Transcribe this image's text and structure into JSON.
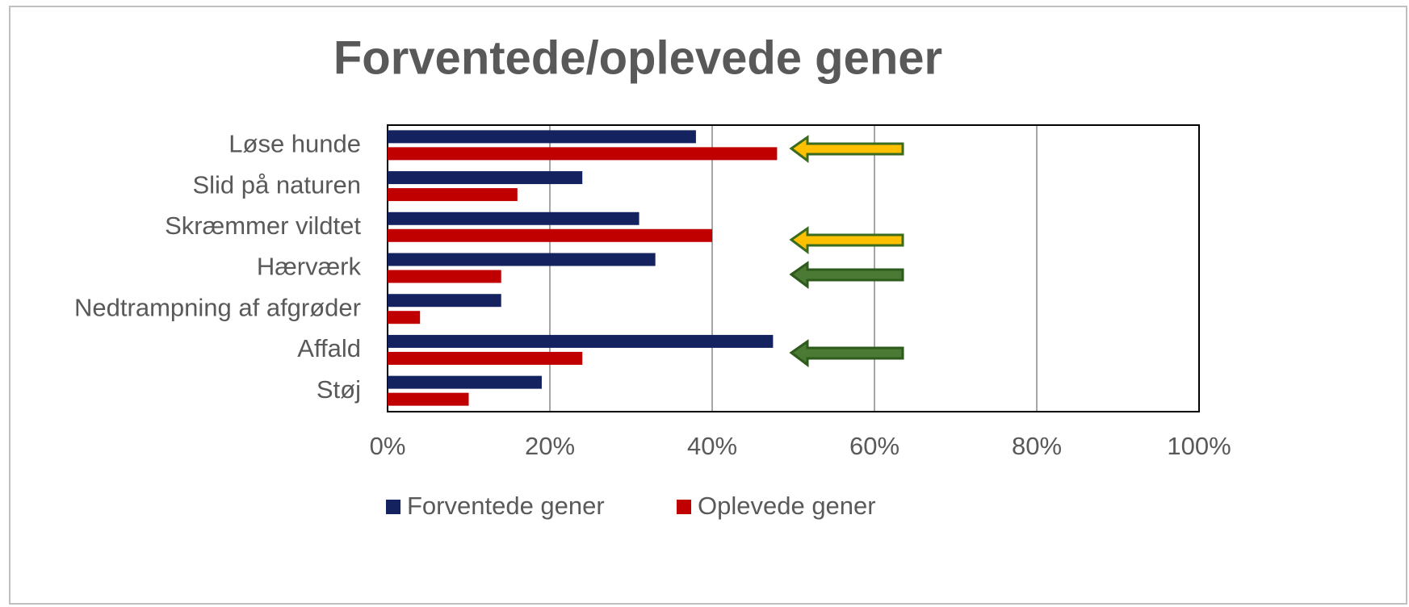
{
  "chart_data": {
    "type": "hbar",
    "title": "Forventede/oplevede gener",
    "categories": [
      "Løse hunde",
      "Slid på naturen",
      "Skræmmer vildtet",
      "Hærværk",
      "Nedtrampning af afgrøder",
      "Affald",
      "Støj"
    ],
    "series": [
      {
        "name": "Forventede gener",
        "color": "#142360",
        "values": [
          38,
          24,
          31,
          33,
          14,
          47.5,
          19
        ]
      },
      {
        "name": "Oplevede gener",
        "color": "#c00000",
        "values": [
          48,
          16,
          40,
          14,
          4,
          24,
          10
        ]
      }
    ],
    "xlim": [
      0,
      100
    ],
    "xticks": [
      {
        "value": 0,
        "label": "0%"
      },
      {
        "value": 20,
        "label": "20%"
      },
      {
        "value": 40,
        "label": "40%"
      },
      {
        "value": 60,
        "label": "60%"
      },
      {
        "value": 80,
        "label": "80%"
      },
      {
        "value": 100,
        "label": "100%"
      }
    ],
    "grid": true,
    "legend": "bottom"
  }
}
